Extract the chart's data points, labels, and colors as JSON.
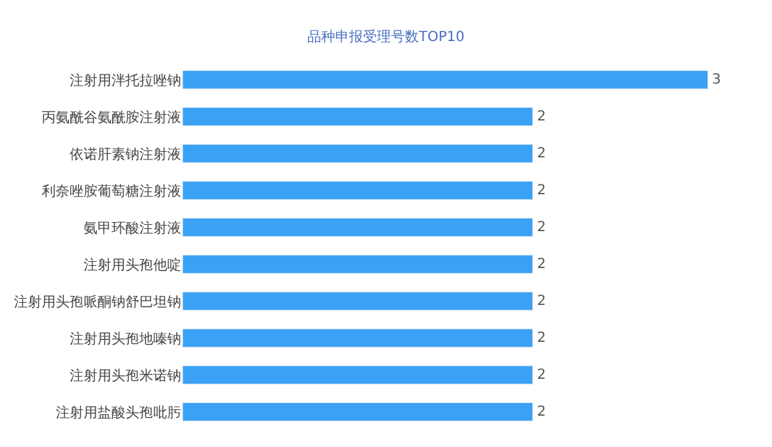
{
  "chart_data": {
    "type": "bar",
    "orientation": "horizontal",
    "title": "品种申报受理号数TOP10",
    "categories": [
      "注射用泮托拉唑钠",
      "丙氨酰谷氨酰胺注射液",
      "依诺肝素钠注射液",
      "利奈唑胺葡萄糖注射液",
      "氨甲环酸注射液",
      "注射用头孢他啶",
      "注射用头孢哌酮钠舒巴坦钠",
      "注射用头孢地嗪钠",
      "注射用头孢米诺钠",
      "注射用盐酸头孢吡肟"
    ],
    "values": [
      3,
      2,
      2,
      2,
      2,
      2,
      2,
      2,
      2,
      2
    ],
    "color": "#3ba1f5",
    "data_labels": true
  }
}
